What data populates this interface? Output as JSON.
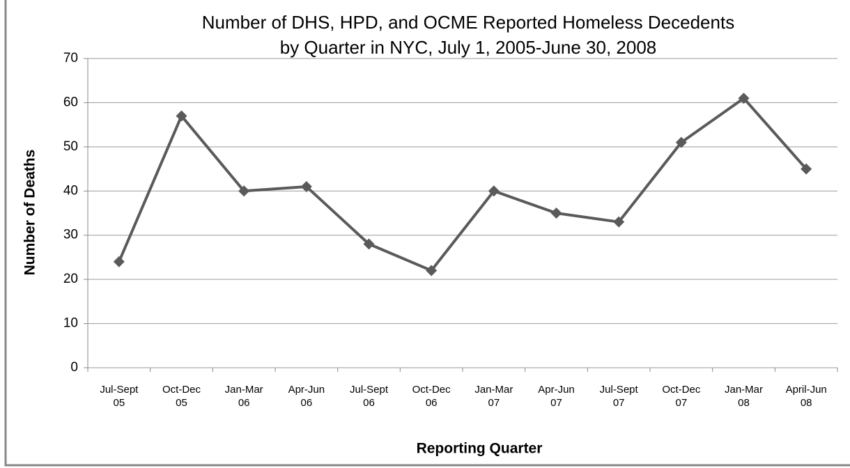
{
  "chart_data": {
    "type": "line",
    "title": "Number of DHS, HPD, and OCME Reported Homeless Decedents",
    "subtitle": "by Quarter in NYC, July 1, 2005-June 30, 2008",
    "x_label": "Reporting Quarter",
    "y_label": "Number of Deaths",
    "categories": [
      "Jul-Sept\n05",
      "Oct-Dec\n05",
      "Jan-Mar\n06",
      "Apr-Jun\n06",
      "Jul-Sept\n06",
      "Oct-Dec\n06",
      "Jan-Mar\n07",
      "Apr-Jun\n07",
      "Jul-Sept\n07",
      "Oct-Dec\n07",
      "Jan-Mar\n08",
      "April-Jun\n08"
    ],
    "values": [
      24,
      57,
      40,
      41,
      28,
      22,
      40,
      35,
      33,
      51,
      61,
      45
    ],
    "color": "#5a5a5a",
    "ylim": [
      0,
      70
    ],
    "yticks": [
      0,
      10,
      20,
      30,
      40,
      50,
      60,
      70
    ],
    "grid": true
  }
}
